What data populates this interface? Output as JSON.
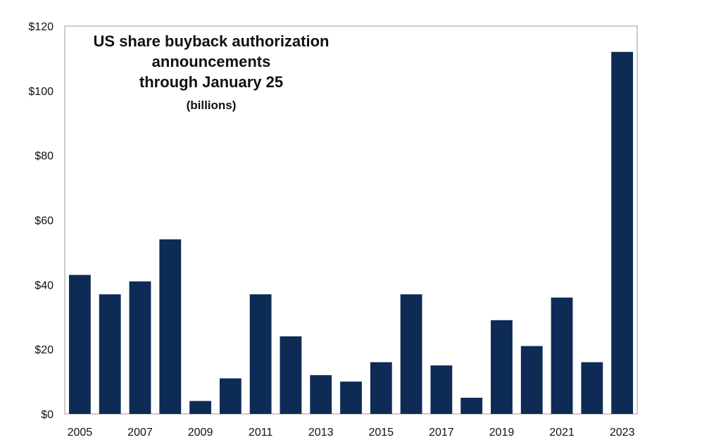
{
  "chart_data": {
    "type": "bar",
    "title_lines": [
      "US share buyback authorization",
      "announcements",
      "through January  25"
    ],
    "subtitle": "(billions)",
    "xlabel": "",
    "ylabel": "",
    "categories": [
      "2005",
      "2006",
      "2007",
      "2008",
      "2009",
      "2010",
      "2011",
      "2012",
      "2013",
      "2014",
      "2015",
      "2016",
      "2017",
      "2018",
      "2019",
      "2020",
      "2021",
      "2022",
      "2023"
    ],
    "values": [
      43,
      37,
      41,
      54,
      4,
      11,
      37,
      24,
      12,
      10,
      16,
      37,
      15,
      5,
      29,
      21,
      36,
      16,
      112
    ],
    "x_tick_labels": [
      "2005",
      "",
      "2007",
      "",
      "2009",
      "",
      "2011",
      "",
      "2013",
      "",
      "2015",
      "",
      "2017",
      "",
      "2019",
      "",
      "2021",
      "",
      "2023"
    ],
    "y_ticks": [
      0,
      20,
      40,
      60,
      80,
      100,
      120
    ],
    "y_tick_labels": [
      "$0",
      "$20",
      "$40",
      "$60",
      "$80",
      "$100",
      "$120"
    ],
    "ylim": [
      0,
      120
    ],
    "grid": false,
    "legend": "none",
    "bar_color": "#0d2b55",
    "frame_color": "#999999"
  }
}
